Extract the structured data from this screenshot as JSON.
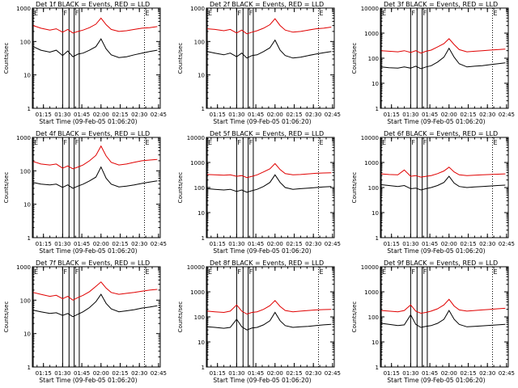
{
  "figure": {
    "x_axis_label": "Start Time (09-Feb-05 01:06:20)",
    "y_axis_label": "Counts/sec",
    "x_tick_labels": [
      "01:15",
      "01:30",
      "01:45",
      "02:00",
      "02:15",
      "02:30",
      "02:45"
    ],
    "colors": {
      "events": "#000000",
      "lld": "#e00000",
      "frame": "#000000"
    }
  },
  "chart_data": [
    {
      "type": "line",
      "title": "Det 1f BLACK = Events, RED = LLD",
      "ylabel": "Counts/sec",
      "xlabel": "Start Time (09-Feb-05 01:06:20)",
      "yscale": "log",
      "ylim": [
        1,
        1000
      ],
      "yticks": [
        1,
        10,
        100,
        1000
      ],
      "xlim": [
        "01:06:20",
        "02:46:20"
      ],
      "xticks": [
        "01:15",
        "01:30",
        "01:45",
        "02:00",
        "02:15",
        "02:30",
        "02:45"
      ],
      "marker_labels": [
        {
          "label": "E",
          "time": "01:07"
        },
        {
          "label": "F",
          "time": "01:30"
        },
        {
          "label": "F",
          "time": "01:39"
        },
        {
          "label": "E",
          "time": "02:34"
        }
      ],
      "x": [
        "01:07",
        "01:13",
        "01:20",
        "01:25",
        "01:30",
        "01:34",
        "01:38",
        "01:42",
        "01:46",
        "01:51",
        "01:56",
        "02:00",
        "02:04",
        "02:08",
        "02:14",
        "02:20",
        "02:26",
        "02:32",
        "02:38",
        "02:44"
      ],
      "series": [
        {
          "name": "Events",
          "color": "black",
          "values": [
            70,
            55,
            48,
            55,
            38,
            52,
            35,
            42,
            45,
            55,
            70,
            120,
            60,
            40,
            33,
            35,
            40,
            45,
            50,
            55
          ]
        },
        {
          "name": "LLD",
          "color": "red",
          "values": [
            300,
            250,
            220,
            240,
            190,
            230,
            180,
            200,
            220,
            260,
            330,
            500,
            320,
            230,
            200,
            210,
            230,
            250,
            260,
            280
          ]
        }
      ]
    },
    {
      "type": "line",
      "title": "Det 2f BLACK = Events, RED = LLD",
      "ylabel": "Counts/sec",
      "xlabel": "Start Time (09-Feb-05 01:06:20)",
      "yscale": "log",
      "ylim": [
        1,
        1000
      ],
      "yticks": [
        1,
        10,
        100,
        1000
      ],
      "xlim": [
        "01:06:20",
        "02:46:20"
      ],
      "xticks": [
        "01:15",
        "01:30",
        "01:45",
        "02:00",
        "02:15",
        "02:30",
        "02:45"
      ],
      "marker_labels": [
        {
          "label": "E",
          "time": "01:07"
        },
        {
          "label": "F",
          "time": "01:30"
        },
        {
          "label": "F",
          "time": "01:39"
        },
        {
          "label": "E",
          "time": "02:34"
        }
      ],
      "x": [
        "01:07",
        "01:13",
        "01:20",
        "01:25",
        "01:30",
        "01:34",
        "01:38",
        "01:42",
        "01:46",
        "01:51",
        "01:56",
        "02:00",
        "02:04",
        "02:08",
        "02:14",
        "02:20",
        "02:26",
        "02:32",
        "02:38",
        "02:44"
      ],
      "series": [
        {
          "name": "Events",
          "color": "black",
          "values": [
            50,
            45,
            40,
            45,
            35,
            45,
            32,
            38,
            40,
            50,
            65,
            110,
            55,
            38,
            32,
            34,
            38,
            42,
            46,
            50
          ]
        },
        {
          "name": "LLD",
          "color": "red",
          "values": [
            240,
            230,
            210,
            230,
            180,
            220,
            170,
            190,
            210,
            250,
            320,
            480,
            300,
            220,
            190,
            200,
            220,
            240,
            250,
            270
          ]
        }
      ]
    },
    {
      "type": "line",
      "title": "Det 3f BLACK = Events, RED = LLD",
      "ylabel": "Counts/sec",
      "xlabel": "Start Time (09-Feb-05 01:06:20)",
      "yscale": "log",
      "ylim": [
        1,
        10000
      ],
      "yticks": [
        1,
        10,
        100,
        1000,
        10000
      ],
      "xlim": [
        "01:06:20",
        "02:46:20"
      ],
      "xticks": [
        "01:15",
        "01:30",
        "01:45",
        "02:00",
        "02:15",
        "02:30",
        "02:45"
      ],
      "marker_labels": [
        {
          "label": "E",
          "time": "01:07"
        },
        {
          "label": "F",
          "time": "01:30"
        },
        {
          "label": "F",
          "time": "01:39"
        },
        {
          "label": "E",
          "time": "02:34"
        }
      ],
      "x": [
        "01:07",
        "01:13",
        "01:20",
        "01:25",
        "01:30",
        "01:34",
        "01:38",
        "01:42",
        "01:46",
        "01:51",
        "01:56",
        "02:00",
        "02:04",
        "02:08",
        "02:14",
        "02:20",
        "02:26",
        "02:32",
        "02:38",
        "02:44"
      ],
      "series": [
        {
          "name": "Events",
          "color": "black",
          "values": [
            45,
            42,
            40,
            45,
            40,
            48,
            38,
            45,
            50,
            70,
            110,
            250,
            110,
            60,
            45,
            48,
            50,
            55,
            60,
            65
          ]
        },
        {
          "name": "LLD",
          "color": "red",
          "values": [
            200,
            190,
            180,
            200,
            170,
            200,
            160,
            190,
            210,
            280,
            380,
            600,
            350,
            220,
            180,
            190,
            200,
            210,
            220,
            230
          ]
        }
      ]
    },
    {
      "type": "line",
      "title": "Det 4f BLACK = Events, RED = LLD",
      "ylabel": "Counts/sec",
      "xlabel": "Start Time (09-Feb-05 01:06:20)",
      "yscale": "log",
      "ylim": [
        1,
        1000
      ],
      "yticks": [
        1,
        10,
        100,
        1000
      ],
      "xlim": [
        "01:06:20",
        "02:46:20"
      ],
      "xticks": [
        "01:15",
        "01:30",
        "01:45",
        "02:00",
        "02:15",
        "02:30",
        "02:45"
      ],
      "marker_labels": [
        {
          "label": "E",
          "time": "01:07"
        },
        {
          "label": "F",
          "time": "01:30"
        },
        {
          "label": "F",
          "time": "01:39"
        },
        {
          "label": "E",
          "time": "02:34"
        }
      ],
      "x": [
        "01:07",
        "01:13",
        "01:20",
        "01:25",
        "01:30",
        "01:34",
        "01:38",
        "01:42",
        "01:46",
        "01:51",
        "01:56",
        "02:00",
        "02:04",
        "02:08",
        "02:14",
        "02:20",
        "02:26",
        "02:32",
        "02:38",
        "02:44"
      ],
      "series": [
        {
          "name": "Events",
          "color": "black",
          "values": [
            45,
            40,
            38,
            40,
            32,
            38,
            30,
            35,
            40,
            50,
            65,
            130,
            60,
            40,
            33,
            35,
            38,
            42,
            46,
            50
          ]
        },
        {
          "name": "LLD",
          "color": "red",
          "values": [
            190,
            160,
            150,
            160,
            120,
            140,
            115,
            130,
            150,
            200,
            290,
            550,
            280,
            180,
            150,
            160,
            180,
            200,
            210,
            220
          ]
        }
      ]
    },
    {
      "type": "line",
      "title": "Det 5f BLACK = Events, RED = LLD",
      "ylabel": "Counts/sec",
      "xlabel": "Start Time (09-Feb-05 01:06:20)",
      "yscale": "log",
      "ylim": [
        1,
        10000
      ],
      "yticks": [
        1,
        10,
        100,
        1000,
        10000
      ],
      "xlim": [
        "01:06:20",
        "02:46:20"
      ],
      "xticks": [
        "01:15",
        "01:30",
        "01:45",
        "02:00",
        "02:15",
        "02:30",
        "02:45"
      ],
      "marker_labels": [
        {
          "label": "E",
          "time": "01:07"
        },
        {
          "label": "F",
          "time": "01:30"
        },
        {
          "label": "F",
          "time": "01:39"
        },
        {
          "label": "E",
          "time": "02:34"
        }
      ],
      "x": [
        "01:07",
        "01:13",
        "01:20",
        "01:25",
        "01:30",
        "01:34",
        "01:38",
        "01:42",
        "01:46",
        "01:51",
        "01:56",
        "02:00",
        "02:04",
        "02:08",
        "02:14",
        "02:20",
        "02:26",
        "02:32",
        "02:38",
        "02:44"
      ],
      "series": [
        {
          "name": "Events",
          "color": "black",
          "values": [
            90,
            85,
            80,
            85,
            70,
            80,
            65,
            75,
            85,
            110,
            160,
            320,
            160,
            100,
            85,
            90,
            95,
            100,
            105,
            110
          ]
        },
        {
          "name": "LLD",
          "color": "red",
          "values": [
            330,
            320,
            310,
            320,
            280,
            300,
            250,
            280,
            320,
            420,
            560,
            900,
            520,
            360,
            320,
            330,
            350,
            370,
            380,
            390
          ]
        }
      ]
    },
    {
      "type": "line",
      "title": "Det 6f BLACK = Events, RED = LLD",
      "ylabel": "Counts/sec",
      "xlabel": "Start Time (09-Feb-05 01:06:20)",
      "yscale": "log",
      "ylim": [
        1,
        10000
      ],
      "yticks": [
        1,
        10,
        100,
        1000,
        10000
      ],
      "xlim": [
        "01:06:20",
        "02:46:20"
      ],
      "xticks": [
        "01:15",
        "01:30",
        "01:45",
        "02:00",
        "02:15",
        "02:30",
        "02:45"
      ],
      "marker_labels": [
        {
          "label": "E",
          "time": "01:07"
        },
        {
          "label": "F",
          "time": "01:30"
        },
        {
          "label": "F",
          "time": "01:39"
        },
        {
          "label": "E",
          "time": "02:34"
        }
      ],
      "x": [
        "01:07",
        "01:13",
        "01:20",
        "01:25",
        "01:30",
        "01:34",
        "01:38",
        "01:42",
        "01:46",
        "01:51",
        "01:56",
        "02:00",
        "02:04",
        "02:08",
        "02:14",
        "02:20",
        "02:26",
        "02:32",
        "02:38",
        "02:44"
      ],
      "series": [
        {
          "name": "Events",
          "color": "black",
          "values": [
            130,
            120,
            110,
            120,
            90,
            95,
            80,
            90,
            100,
            120,
            160,
            280,
            150,
            110,
            100,
            105,
            110,
            115,
            120,
            125
          ]
        },
        {
          "name": "LLD",
          "color": "red",
          "values": [
            350,
            330,
            320,
            500,
            280,
            300,
            260,
            280,
            300,
            360,
            460,
            650,
            420,
            320,
            300,
            310,
            320,
            330,
            340,
            350
          ]
        }
      ]
    },
    {
      "type": "line",
      "title": "Det 7f BLACK = Events, RED = LLD",
      "ylabel": "Counts/sec",
      "xlabel": "Start Time (09-Feb-05 01:06:20)",
      "yscale": "log",
      "ylim": [
        1,
        1000
      ],
      "yticks": [
        1,
        10,
        100,
        1000
      ],
      "xlim": [
        "01:06:20",
        "02:46:20"
      ],
      "xticks": [
        "01:15",
        "01:30",
        "01:45",
        "02:00",
        "02:15",
        "02:30",
        "02:45"
      ],
      "marker_labels": [
        {
          "label": "E",
          "time": "01:07"
        },
        {
          "label": "F",
          "time": "01:30"
        },
        {
          "label": "F",
          "time": "01:39"
        },
        {
          "label": "E",
          "time": "02:34"
        }
      ],
      "x": [
        "01:07",
        "01:13",
        "01:20",
        "01:25",
        "01:30",
        "01:34",
        "01:38",
        "01:42",
        "01:46",
        "01:51",
        "01:56",
        "02:00",
        "02:04",
        "02:08",
        "02:14",
        "02:20",
        "02:26",
        "02:32",
        "02:38",
        "02:44"
      ],
      "series": [
        {
          "name": "Events",
          "color": "black",
          "values": [
            50,
            45,
            40,
            42,
            35,
            40,
            32,
            38,
            45,
            60,
            90,
            150,
            80,
            55,
            45,
            48,
            52,
            58,
            62,
            68
          ]
        },
        {
          "name": "LLD",
          "color": "red",
          "values": [
            170,
            150,
            130,
            140,
            110,
            130,
            100,
            120,
            140,
            180,
            260,
            350,
            230,
            170,
            150,
            160,
            170,
            185,
            200,
            210
          ]
        }
      ]
    },
    {
      "type": "line",
      "title": "Det 8f BLACK = Events, RED = LLD",
      "ylabel": "Counts/sec",
      "xlabel": "Start Time (09-Feb-05 01:06:20)",
      "yscale": "log",
      "ylim": [
        1,
        10000
      ],
      "yticks": [
        1,
        10,
        100,
        1000,
        10000
      ],
      "xlim": [
        "01:06:20",
        "02:46:20"
      ],
      "xticks": [
        "01:15",
        "01:30",
        "01:45",
        "02:00",
        "02:15",
        "02:30",
        "02:45"
      ],
      "marker_labels": [
        {
          "label": "E",
          "time": "01:07"
        },
        {
          "label": "F",
          "time": "01:30"
        },
        {
          "label": "F",
          "time": "01:39"
        },
        {
          "label": "E",
          "time": "02:34"
        }
      ],
      "x": [
        "01:07",
        "01:13",
        "01:20",
        "01:25",
        "01:30",
        "01:34",
        "01:38",
        "01:42",
        "01:46",
        "01:51",
        "01:56",
        "02:00",
        "02:04",
        "02:08",
        "02:14",
        "02:20",
        "02:26",
        "02:32",
        "02:38",
        "02:44"
      ],
      "series": [
        {
          "name": "Events",
          "color": "black",
          "values": [
            40,
            38,
            35,
            38,
            80,
            40,
            30,
            36,
            38,
            48,
            70,
            150,
            70,
            45,
            38,
            40,
            42,
            45,
            48,
            50
          ]
        },
        {
          "name": "LLD",
          "color": "red",
          "values": [
            170,
            160,
            150,
            170,
            300,
            170,
            130,
            150,
            160,
            200,
            280,
            450,
            260,
            180,
            160,
            170,
            180,
            190,
            195,
            200
          ]
        }
      ]
    },
    {
      "type": "line",
      "title": "Det 9f BLACK = Events, RED = LLD",
      "ylabel": "Counts/sec",
      "xlabel": "Start Time (09-Feb-05 01:06:20)",
      "yscale": "log",
      "ylim": [
        1,
        10000
      ],
      "yticks": [
        1,
        10,
        100,
        1000,
        10000
      ],
      "xlim": [
        "01:06:20",
        "02:46:20"
      ],
      "xticks": [
        "01:15",
        "01:30",
        "01:45",
        "02:00",
        "02:15",
        "02:30",
        "02:45"
      ],
      "marker_labels": [
        {
          "label": "E",
          "time": "01:07"
        },
        {
          "label": "F",
          "time": "01:30"
        },
        {
          "label": "F",
          "time": "01:39"
        },
        {
          "label": "E",
          "time": "02:34"
        }
      ],
      "x": [
        "01:07",
        "01:13",
        "01:20",
        "01:25",
        "01:30",
        "01:34",
        "01:38",
        "01:42",
        "01:46",
        "01:51",
        "01:56",
        "02:00",
        "02:04",
        "02:08",
        "02:14",
        "02:20",
        "02:26",
        "02:32",
        "02:38",
        "02:44"
      ],
      "series": [
        {
          "name": "Events",
          "color": "black",
          "values": [
            55,
            50,
            45,
            48,
            120,
            50,
            38,
            42,
            45,
            55,
            80,
            180,
            80,
            50,
            40,
            42,
            44,
            46,
            48,
            50
          ]
        },
        {
          "name": "LLD",
          "color": "red",
          "values": [
            180,
            170,
            160,
            180,
            300,
            170,
            140,
            150,
            170,
            210,
            300,
            500,
            270,
            190,
            170,
            180,
            190,
            200,
            210,
            220
          ]
        }
      ]
    }
  ]
}
